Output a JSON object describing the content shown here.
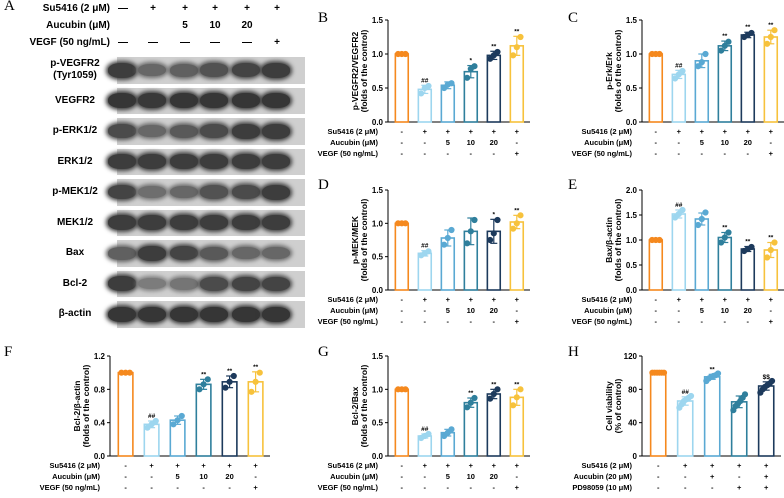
{
  "panel_letters": [
    "A",
    "B",
    "C",
    "D",
    "E",
    "F",
    "G",
    "H"
  ],
  "panelA": {
    "conditions": [
      {
        "label": "Su5416 (2 μM)",
        "values": [
          "—",
          "+",
          "+",
          "+",
          "+",
          "+"
        ]
      },
      {
        "label": "Aucubin (μM)",
        "values": [
          "",
          "",
          "5",
          "10",
          "20",
          ""
        ]
      },
      {
        "label": "VEGF (50 ng/mL)",
        "values": [
          "—",
          "—",
          "—",
          "—",
          "—",
          "+"
        ]
      }
    ],
    "blots": [
      {
        "label": "p-VEGFR2",
        "sublabel": "(Tyr1059)",
        "intensity": [
          0.85,
          0.55,
          0.6,
          0.7,
          0.8,
          0.85
        ]
      },
      {
        "label": "VEGFR2",
        "sublabel": "",
        "intensity": [
          0.9,
          0.88,
          0.9,
          0.9,
          0.9,
          0.9
        ]
      },
      {
        "label": "p-ERK1/2",
        "sublabel": "",
        "intensity": [
          0.75,
          0.55,
          0.65,
          0.75,
          0.85,
          0.85
        ]
      },
      {
        "label": "ERK1/2",
        "sublabel": "",
        "intensity": [
          0.85,
          0.85,
          0.85,
          0.85,
          0.85,
          0.85
        ]
      },
      {
        "label": "p-MEK1/2",
        "sublabel": "",
        "intensity": [
          0.8,
          0.5,
          0.55,
          0.7,
          0.75,
          0.85
        ]
      },
      {
        "label": "MEK1/2",
        "sublabel": "",
        "intensity": [
          0.85,
          0.85,
          0.85,
          0.85,
          0.85,
          0.85
        ]
      },
      {
        "label": "Bax",
        "sublabel": "",
        "intensity": [
          0.6,
          0.85,
          0.8,
          0.65,
          0.55,
          0.55
        ]
      },
      {
        "label": "Bcl-2",
        "sublabel": "",
        "intensity": [
          0.85,
          0.4,
          0.45,
          0.75,
          0.8,
          0.8
        ]
      },
      {
        "label": "β-actin",
        "sublabel": "",
        "intensity": [
          0.9,
          0.9,
          0.9,
          0.9,
          0.9,
          0.9
        ]
      }
    ]
  },
  "group_colors": [
    "#f5891e",
    "#9dd6ef",
    "#5aa9d3",
    "#2f7f9c",
    "#1d3a5c",
    "#f7c23c"
  ],
  "chart_data": [
    {
      "panel": "B",
      "type": "bar",
      "ylabel": "p-VEGFR2/VEGFR2",
      "ylabel2": "(folds of the control)",
      "ylim": [
        0,
        1.5
      ],
      "yticks": [
        0.0,
        0.5,
        1.0,
        1.5
      ],
      "tick_labels": [
        "0.0",
        "0.5",
        "1.0",
        "1.5"
      ],
      "values": [
        1.0,
        0.48,
        0.54,
        0.74,
        0.98,
        1.12
      ],
      "errors": [
        0.01,
        0.06,
        0.05,
        0.09,
        0.06,
        0.14
      ],
      "points": [
        [
          1,
          1,
          1
        ],
        [
          0.42,
          0.5,
          0.53
        ],
        [
          0.5,
          0.55,
          0.57
        ],
        [
          0.65,
          0.78,
          0.82
        ],
        [
          0.93,
          0.98,
          1.03
        ],
        [
          0.98,
          1.1,
          1.25
        ]
      ],
      "sig": [
        "",
        "##",
        "",
        "*",
        "**",
        "**"
      ],
      "row_labels": [
        "Su5416 (2 μM)",
        "Aucubin (μM)",
        "VEGF (50 ng/mL)"
      ],
      "row_values": [
        [
          "-",
          "+",
          "+",
          "+",
          "+",
          "+"
        ],
        [
          "-",
          "-",
          "5",
          "10",
          "20",
          "-"
        ],
        [
          "-",
          "-",
          "-",
          "-",
          "-",
          "+"
        ]
      ]
    },
    {
      "panel": "C",
      "type": "bar",
      "ylabel": "p-Erk/Erk",
      "ylabel2": "(folds of the control)",
      "ylim": [
        0,
        1.5
      ],
      "yticks": [
        0.0,
        0.5,
        1.0,
        1.5
      ],
      "tick_labels": [
        "0.0",
        "0.5",
        "1.0",
        "1.5"
      ],
      "values": [
        1.0,
        0.7,
        0.9,
        1.12,
        1.28,
        1.25
      ],
      "errors": [
        0.01,
        0.06,
        0.1,
        0.07,
        0.04,
        0.1
      ],
      "points": [
        [
          1,
          1,
          1
        ],
        [
          0.64,
          0.7,
          0.75
        ],
        [
          0.82,
          0.88,
          1.0
        ],
        [
          1.05,
          1.12,
          1.18
        ],
        [
          1.25,
          1.28,
          1.31
        ],
        [
          1.15,
          1.25,
          1.35
        ]
      ],
      "sig": [
        "",
        "##",
        "",
        "**",
        "**",
        "**"
      ],
      "row_labels": [
        "Su5416 (2 μM)",
        "Aucubin (μM)",
        "VEGF (50 ng/mL)"
      ],
      "row_values": [
        [
          "-",
          "+",
          "+",
          "+",
          "+",
          "+"
        ],
        [
          "-",
          "-",
          "5",
          "10",
          "20",
          "-"
        ],
        [
          "-",
          "-",
          "-",
          "-",
          "-",
          "+"
        ]
      ]
    },
    {
      "panel": "D",
      "type": "bar",
      "ylabel": "p-MEK/MEK",
      "ylabel2": "(folds of the control)",
      "ylim": [
        0,
        1.5
      ],
      "yticks": [
        0.0,
        0.5,
        1.0,
        1.5
      ],
      "tick_labels": [
        "0.0",
        "0.5",
        "1.0",
        "1.5"
      ],
      "values": [
        1.0,
        0.55,
        0.78,
        0.88,
        0.88,
        1.02
      ],
      "errors": [
        0.01,
        0.04,
        0.12,
        0.2,
        0.18,
        0.1
      ],
      "points": [
        [
          1,
          1,
          1
        ],
        [
          0.52,
          0.55,
          0.58
        ],
        [
          0.68,
          0.78,
          0.9
        ],
        [
          0.7,
          0.88,
          1.05
        ],
        [
          0.75,
          0.85,
          1.05
        ],
        [
          0.92,
          1.0,
          1.12
        ]
      ],
      "sig": [
        "",
        "##",
        "",
        "",
        "*",
        "**"
      ],
      "row_labels": [
        "Su5416 (2 μM)",
        "Aucubin (μM)",
        "VEGF (50 ng/mL)"
      ],
      "row_values": [
        [
          "-",
          "+",
          "+",
          "+",
          "+",
          "+"
        ],
        [
          "-",
          "-",
          "5",
          "10",
          "20",
          "-"
        ],
        [
          "-",
          "-",
          "-",
          "-",
          "-",
          "+"
        ]
      ]
    },
    {
      "panel": "E",
      "type": "bar",
      "ylabel": "Bax/β-actin",
      "ylabel2": "(folds of the control)",
      "ylim": [
        0,
        2.0
      ],
      "yticks": [
        0.0,
        0.5,
        1.0,
        1.5,
        2.0
      ],
      "tick_labels": [
        "0.0",
        "0.5",
        "1.0",
        "1.5",
        "2.0"
      ],
      "values": [
        1.0,
        1.52,
        1.42,
        1.05,
        0.82,
        0.8
      ],
      "errors": [
        0.01,
        0.08,
        0.12,
        0.1,
        0.05,
        0.15
      ],
      "points": [
        [
          1,
          1,
          1
        ],
        [
          1.45,
          1.52,
          1.6
        ],
        [
          1.3,
          1.42,
          1.55
        ],
        [
          0.95,
          1.05,
          1.15
        ],
        [
          0.78,
          0.82,
          0.86
        ],
        [
          0.65,
          0.8,
          0.95
        ]
      ],
      "sig": [
        "",
        "##",
        "",
        "**",
        "**",
        "**"
      ],
      "row_labels": [
        "Su5416 (2 μM)",
        "Aucubin (μM)",
        "VEGF (50 ng/mL)"
      ],
      "row_values": [
        [
          "-",
          "+",
          "+",
          "+",
          "+",
          "+"
        ],
        [
          "-",
          "-",
          "5",
          "10",
          "20",
          "-"
        ],
        [
          "-",
          "-",
          "-",
          "-",
          "-",
          "+"
        ]
      ]
    },
    {
      "panel": "F",
      "type": "bar",
      "ylabel": "Bcl-2/β-actin",
      "ylabel2": "(folds of the control)",
      "ylim": [
        0,
        1.2
      ],
      "yticks": [
        0.0,
        0.4,
        0.8,
        1.2
      ],
      "tick_labels": [
        "0.0",
        "0.4",
        "0.8",
        "1.2"
      ],
      "values": [
        1.0,
        0.38,
        0.43,
        0.86,
        0.89,
        0.89
      ],
      "errors": [
        0.01,
        0.04,
        0.05,
        0.06,
        0.07,
        0.12
      ],
      "points": [
        [
          1,
          1,
          1
        ],
        [
          0.34,
          0.38,
          0.42
        ],
        [
          0.38,
          0.43,
          0.48
        ],
        [
          0.8,
          0.86,
          0.92
        ],
        [
          0.82,
          0.89,
          0.96
        ],
        [
          0.77,
          0.89,
          1.0
        ]
      ],
      "sig": [
        "",
        "##",
        "",
        "**",
        "**",
        "**"
      ],
      "row_labels": [
        "Su5416 (2 μM)",
        "Aucubin (μM)",
        "VEGF (50 ng/mL)"
      ],
      "row_values": [
        [
          "-",
          "+",
          "+",
          "+",
          "+",
          "+"
        ],
        [
          "-",
          "-",
          "5",
          "10",
          "20",
          "-"
        ],
        [
          "-",
          "-",
          "-",
          "-",
          "-",
          "+"
        ]
      ]
    },
    {
      "panel": "G",
      "type": "bar",
      "ylabel": "Bcl-2/Bax",
      "ylabel2": "(folds of the control)",
      "ylim": [
        0,
        1.5
      ],
      "yticks": [
        0.0,
        0.5,
        1.0,
        1.5
      ],
      "tick_labels": [
        "0.0",
        "0.5",
        "1.0",
        "1.5"
      ],
      "values": [
        1.0,
        0.3,
        0.35,
        0.8,
        0.93,
        0.88
      ],
      "errors": [
        0.01,
        0.03,
        0.05,
        0.07,
        0.07,
        0.12
      ],
      "points": [
        [
          1,
          1,
          1
        ],
        [
          0.27,
          0.3,
          0.33
        ],
        [
          0.3,
          0.35,
          0.4
        ],
        [
          0.73,
          0.8,
          0.87
        ],
        [
          0.86,
          0.93,
          1.0
        ],
        [
          0.76,
          0.88,
          1.0
        ]
      ],
      "sig": [
        "",
        "##",
        "",
        "**",
        "**",
        "**"
      ],
      "row_labels": [
        "Su5416 (2 μM)",
        "Aucubin (μM)",
        "VEGF (50 ng/mL)"
      ],
      "row_values": [
        [
          "-",
          "+",
          "+",
          "+",
          "+",
          "+"
        ],
        [
          "-",
          "-",
          "5",
          "10",
          "20",
          "-"
        ],
        [
          "-",
          "-",
          "-",
          "-",
          "-",
          "+"
        ]
      ]
    },
    {
      "panel": "H",
      "type": "bar",
      "ylabel": "Cell viability",
      "ylabel2": "(% of control)",
      "ylim": [
        0,
        120
      ],
      "yticks": [
        0,
        40,
        80,
        120
      ],
      "tick_labels": [
        "0",
        "40",
        "80",
        "120"
      ],
      "values": [
        100,
        66,
        95,
        65,
        84
      ],
      "errors": [
        0.5,
        5,
        3,
        7,
        5
      ],
      "points": [
        [
          100,
          100,
          100,
          100,
          100,
          100
        ],
        [
          58,
          62,
          66,
          68,
          70,
          72
        ],
        [
          90,
          93,
          95,
          96,
          97,
          99
        ],
        [
          55,
          60,
          63,
          66,
          70,
          74
        ],
        [
          76,
          80,
          83,
          85,
          87,
          90
        ]
      ],
      "sig": [
        "",
        "##",
        "**",
        "",
        "$$"
      ],
      "colors": [
        "#f5891e",
        "#9dd6ef",
        "#5aa9d3",
        "#2f7f9c",
        "#1d3a5c"
      ],
      "row_labels": [
        "Su5416 (2 μM)",
        "Aucubin (20 μM)",
        "PD98059 (10 μM)"
      ],
      "row_values": [
        [
          "-",
          "+",
          "+",
          "+",
          "+"
        ],
        [
          "-",
          "-",
          "+",
          "-",
          "+"
        ],
        [
          "-",
          "-",
          "-",
          "+",
          "+"
        ]
      ]
    }
  ]
}
